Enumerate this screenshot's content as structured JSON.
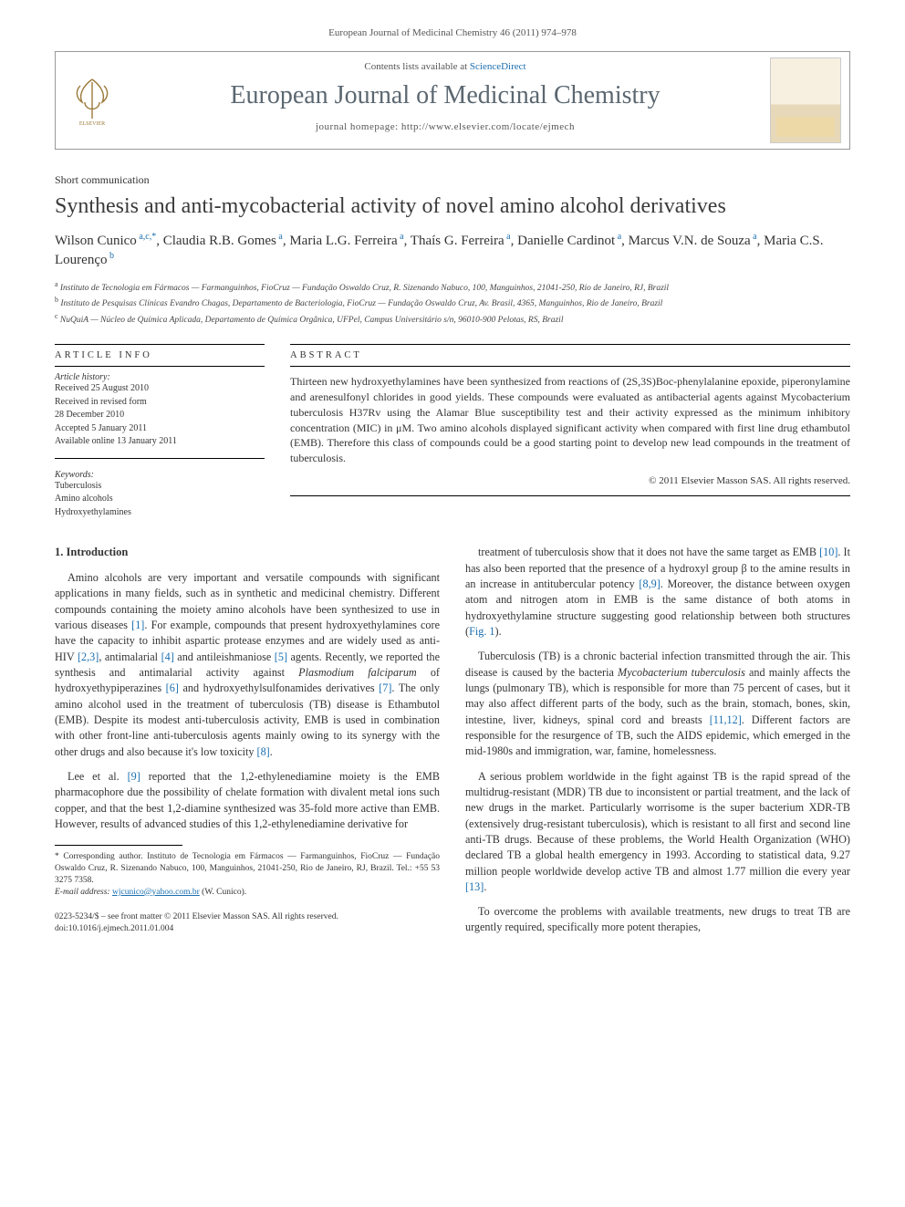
{
  "top_citation": "European Journal of Medicinal Chemistry 46 (2011) 974–978",
  "header": {
    "contents_prefix": "Contents lists available at ",
    "contents_link": "ScienceDirect",
    "journal_title": "European Journal of Medicinal Chemistry",
    "homepage_prefix": "journal homepage: ",
    "homepage_url": "http://www.elsevier.com/locate/ejmech"
  },
  "article": {
    "type": "Short communication",
    "title": "Synthesis and anti-mycobacterial activity of novel amino alcohol derivatives",
    "authors_html": "Wilson Cunico<sup> a,c,*</sup>, Claudia R.B. Gomes<sup> a</sup>, Maria L.G. Ferreira<sup> a</sup>, Thaís G. Ferreira<sup> a</sup>, Danielle Cardinot<sup> a</sup>, Marcus V.N. de Souza<sup> a</sup>, Maria C.S. Lourenço<sup> b</sup>",
    "affiliations": [
      "a Instituto de Tecnologia em Fármacos — Farmanguinhos, FioCruz — Fundação Oswaldo Cruz, R. Sizenando Nabuco, 100, Manguinhos, 21041-250, Rio de Janeiro, RJ, Brazil",
      "b Instituto de Pesquisas Clínicas Evandro Chagas, Departamento de Bacteriologia, FioCruz — Fundação Oswaldo Cruz, Av. Brasil, 4365, Manguinhos, Rio de Janeiro, Brazil",
      "c NuQuiA — Núcleo de Química Aplicada, Departamento de Química Orgânica, UFPel, Campus Universitário s/n, 96010-900 Pelotas, RS, Brazil"
    ]
  },
  "info": {
    "label": "ARTICLE INFO",
    "history_head": "Article history:",
    "history": [
      "Received 25 August 2010",
      "Received in revised form",
      "28 December 2010",
      "Accepted 5 January 2011",
      "Available online 13 January 2011"
    ],
    "keywords_head": "Keywords:",
    "keywords": [
      "Tuberculosis",
      "Amino alcohols",
      "Hydroxyethylamines"
    ]
  },
  "abstract": {
    "label": "ABSTRACT",
    "text": "Thirteen new hydroxyethylamines have been synthesized from reactions of (2S,3S)Boc-phenylalanine epoxide, piperonylamine and arenesulfonyl chlorides in good yields. These compounds were evaluated as antibacterial agents against Mycobacterium tuberculosis H37Rv using the Alamar Blue susceptibility test and their activity expressed as the minimum inhibitory concentration (MIC) in μM. Two amino alcohols displayed significant activity when compared with first line drug ethambutol (EMB). Therefore this class of compounds could be a good starting point to develop new lead compounds in the treatment of tuberculosis.",
    "copyright": "© 2011 Elsevier Masson SAS. All rights reserved."
  },
  "body": {
    "section_head": "1. Introduction",
    "left_paras": [
      "Amino alcohols are very important and versatile compounds with significant applications in many fields, such as in synthetic and medicinal chemistry. Different compounds containing the moiety amino alcohols have been synthesized to use in various diseases [1]. For example, compounds that present hydroxyethylamines core have the capacity to inhibit aspartic protease enzymes and are widely used as anti-HIV [2,3], antimalarial [4] and antileishmaniose [5] agents. Recently, we reported the synthesis and antimalarial activity against Plasmodium falciparum of hydroxyethypiperazines [6] and hydroxyethylsulfonamides derivatives [7]. The only amino alcohol used in the treatment of tuberculosis (TB) disease is Ethambutol (EMB). Despite its modest anti-tuberculosis activity, EMB is used in combination with other front-line anti-tuberculosis agents mainly owing to its synergy with the other drugs and also because it's low toxicity [8].",
      "Lee et al. [9] reported that the 1,2-ethylenediamine moiety is the EMB pharmacophore due the possibility of chelate formation with divalent metal ions such copper, and that the best 1,2-diamine synthesized was 35-fold more active than EMB. However, results of advanced studies of this 1,2-ethylenediamine derivative for"
    ],
    "right_paras": [
      "treatment of tuberculosis show that it does not have the same target as EMB [10]. It has also been reported that the presence of a hydroxyl group β to the amine results in an increase in antitubercular potency [8,9]. Moreover, the distance between oxygen atom and nitrogen atom in EMB is the same distance of both atoms in hydroxyethylamine structure suggesting good relationship between both structures (Fig. 1).",
      "Tuberculosis (TB) is a chronic bacterial infection transmitted through the air. This disease is caused by the bacteria Mycobacterium tuberculosis and mainly affects the lungs (pulmonary TB), which is responsible for more than 75 percent of cases, but it may also affect different parts of the body, such as the brain, stomach, bones, skin, intestine, liver, kidneys, spinal cord and breasts [11,12]. Different factors are responsible for the resurgence of TB, such the AIDS epidemic, which emerged in the mid-1980s and immigration, war, famine, homelessness.",
      "A serious problem worldwide in the fight against TB is the rapid spread of the multidrug-resistant (MDR) TB due to inconsistent or partial treatment, and the lack of new drugs in the market. Particularly worrisome is the super bacterium XDR-TB (extensively drug-resistant tuberculosis), which is resistant to all first and second line anti-TB drugs. Because of these problems, the World Health Organization (WHO) declared TB a global health emergency in 1993. According to statistical data, 9.27 million people worldwide develop active TB and almost 1.77 million die every year [13].",
      "To overcome the problems with available treatments, new drugs to treat TB are urgently required, specifically more potent therapies,"
    ]
  },
  "footnote": {
    "corr_label": "* Corresponding author. ",
    "corr_text": "Instituto de Tecnologia em Fármacos — Farmanguinhos, FioCruz — Fundação Oswaldo Cruz, R. Sizenando Nabuco, 100, Manguinhos, 21041-250, Rio de Janeiro, RJ, Brazil. Tel.: +55 53 3275 7358.",
    "email_label": "E-mail address: ",
    "email": "wjcunico@yahoo.com.br",
    "email_suffix": " (W. Cunico)."
  },
  "doi": {
    "line1": "0223-5234/$ – see front matter © 2011 Elsevier Masson SAS. All rights reserved.",
    "line2": "doi:10.1016/j.ejmech.2011.01.004"
  },
  "colors": {
    "link": "#1b6fb0",
    "journal_title": "#5b6770",
    "text": "#333333",
    "rule": "#000000"
  },
  "typography": {
    "body_fontsize_pt": 9,
    "title_fontsize_pt": 18,
    "journal_title_fontsize_pt": 22,
    "authors_fontsize_pt": 11,
    "affil_fontsize_pt": 7
  }
}
